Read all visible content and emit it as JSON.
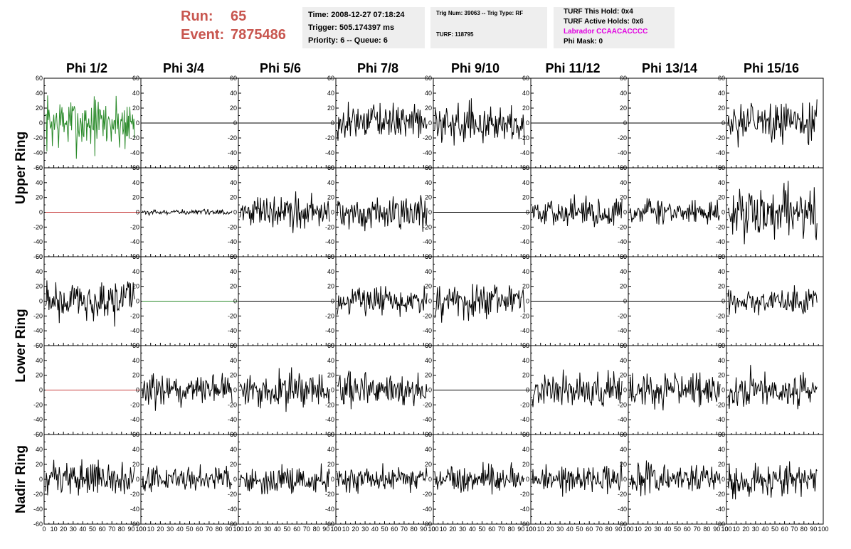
{
  "header": {
    "run_label": "Run:",
    "run_value": "65",
    "event_label": "Event:",
    "event_value": "7875486"
  },
  "info_time": {
    "time": "Time: 2008-12-27 07:18:24",
    "trigger": "Trigger: 505.174397 ms",
    "priority": "Priority: 6 -- Queue: 6"
  },
  "info_trig": {
    "trig": "Trig Num: 39063 -- Trig Type: RF",
    "turf": "TURF: 118795"
  },
  "info_turf": {
    "this_hold": "TURF This Hold: 0x4",
    "active_holds": "TURF Active Holds: 0x6",
    "labrador": "Labrador CCAACACCCC",
    "phi_mask": "Phi Mask: 0"
  },
  "columns": [
    "Phi 1/2",
    "Phi 3/4",
    "Phi 5/6",
    "Phi 7/8",
    "Phi 9/10",
    "Phi 11/12",
    "Phi 13/14",
    "Phi 15/16"
  ],
  "rows": [
    "Upper Ring",
    "Lower Ring",
    "Nadir Ring"
  ],
  "chart_data": {
    "type": "line",
    "ylim": [
      -60,
      60
    ],
    "xlim": [
      0,
      100
    ],
    "y_ticks": [
      "60",
      "40",
      "20",
      "0",
      "-20",
      "-40",
      "-60"
    ],
    "x_ticks": [
      "0",
      "10",
      "20",
      "30",
      "40",
      "50",
      "60",
      "70",
      "80",
      "90",
      "100"
    ],
    "colors": {
      "green": "#2a8a2a",
      "red": "#c83c3c",
      "black": "#000000"
    },
    "panel_rows": [
      [
        {
          "color": "green",
          "amplitude": 22
        },
        {
          "color": "black",
          "amplitude": 0
        },
        {
          "color": "black",
          "amplitude": 0
        },
        {
          "color": "black",
          "amplitude": 13
        },
        {
          "color": "black",
          "amplitude": 14
        },
        {
          "color": "black",
          "amplitude": 0
        },
        {
          "color": "black",
          "amplitude": 0
        },
        {
          "color": "black",
          "amplitude": 15
        }
      ],
      [
        {
          "color": "red",
          "amplitude": 0
        },
        {
          "color": "black",
          "amplitude": 2
        },
        {
          "color": "black",
          "amplitude": 13
        },
        {
          "color": "black",
          "amplitude": 13
        },
        {
          "color": "black",
          "amplitude": 0
        },
        {
          "color": "black",
          "amplitude": 11
        },
        {
          "color": "black",
          "amplitude": 11
        },
        {
          "color": "black",
          "amplitude": 20
        }
      ],
      [
        {
          "color": "black",
          "amplitude": 16
        },
        {
          "color": "green",
          "amplitude": 0
        },
        {
          "color": "black",
          "amplitude": 0
        },
        {
          "color": "black",
          "amplitude": 11
        },
        {
          "color": "black",
          "amplitude": 15
        },
        {
          "color": "black",
          "amplitude": 0
        },
        {
          "color": "black",
          "amplitude": 0
        },
        {
          "color": "black",
          "amplitude": 10
        }
      ],
      [
        {
          "color": "red",
          "amplitude": 0
        },
        {
          "color": "black",
          "amplitude": 13
        },
        {
          "color": "black",
          "amplitude": 13
        },
        {
          "color": "black",
          "amplitude": 13
        },
        {
          "color": "black",
          "amplitude": 0
        },
        {
          "color": "black",
          "amplitude": 13
        },
        {
          "color": "black",
          "amplitude": 13
        },
        {
          "color": "black",
          "amplitude": 14
        }
      ],
      [
        {
          "color": "black",
          "amplitude": 13
        },
        {
          "color": "black",
          "amplitude": 10
        },
        {
          "color": "black",
          "amplitude": 11
        },
        {
          "color": "black",
          "amplitude": 10
        },
        {
          "color": "black",
          "amplitude": 10
        },
        {
          "color": "black",
          "amplitude": 11
        },
        {
          "color": "black",
          "amplitude": 11
        },
        {
          "color": "black",
          "amplitude": 13
        }
      ]
    ]
  }
}
